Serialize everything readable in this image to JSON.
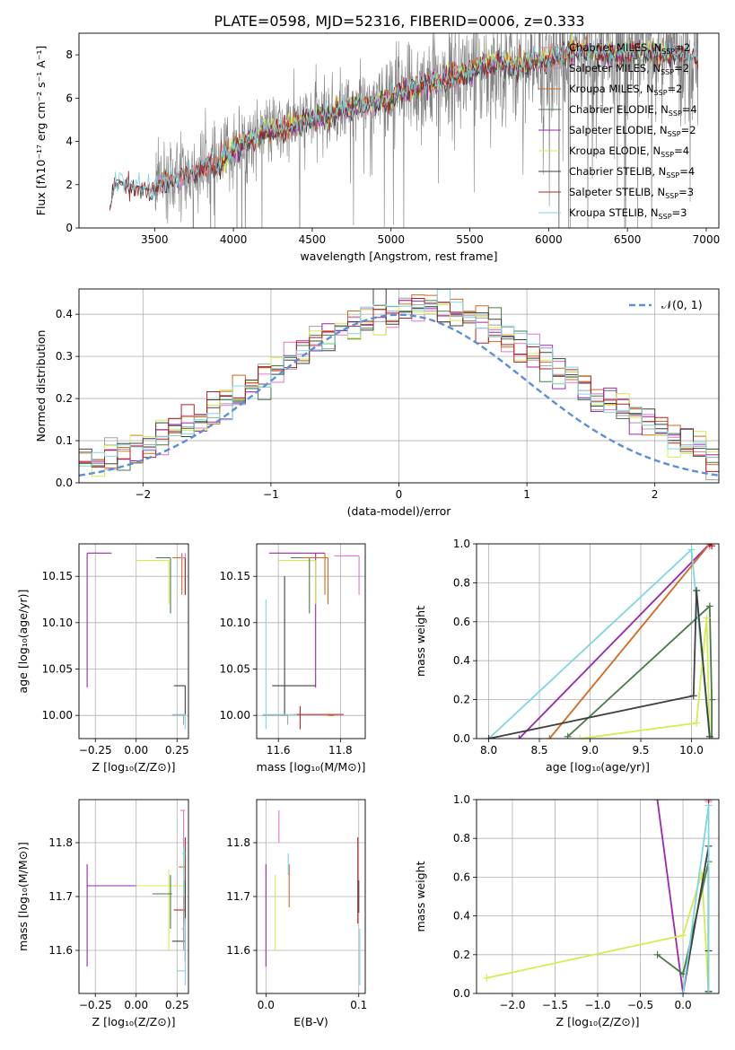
{
  "figure": {
    "title": "PLATE=0598, MJD=52316, FIBERID=0006, z=0.333"
  },
  "colors": {
    "chabrier_miles": "#a0a0a0",
    "salpeter_miles": "#e377c2",
    "kroupa_miles": "#d2691e",
    "chabrier_elodie": "#4a7a4a",
    "salpeter_elodie": "#9b27b0",
    "kroupa_elodie": "#d4ec50",
    "chabrier_stelib": "#404040",
    "salpeter_stelib": "#b22222",
    "kroupa_stelib": "#7fd6e0",
    "spectrum": "#808080",
    "gaussian": "#5b8fd6"
  },
  "legend": [
    {
      "key": "chabrier_miles",
      "label": "Chabrier MILES, N",
      "sub": "SSP",
      "tail": "=2"
    },
    {
      "key": "salpeter_miles",
      "label": "Salpeter MILES, N",
      "sub": "SSP",
      "tail": "=2"
    },
    {
      "key": "kroupa_miles",
      "label": "Kroupa MILES, N",
      "sub": "SSP",
      "tail": "=2"
    },
    {
      "key": "chabrier_elodie",
      "label": "Chabrier ELODIE, N",
      "sub": "SSP",
      "tail": "=4"
    },
    {
      "key": "salpeter_elodie",
      "label": "Salpeter ELODIE, N",
      "sub": "SSP",
      "tail": "=2"
    },
    {
      "key": "kroupa_elodie",
      "label": "Kroupa ELODIE, N",
      "sub": "SSP",
      "tail": "=4"
    },
    {
      "key": "chabrier_stelib",
      "label": "Chabrier STELIB, N",
      "sub": "SSP",
      "tail": "=4"
    },
    {
      "key": "salpeter_stelib",
      "label": "Salpeter STELIB, N",
      "sub": "SSP",
      "tail": "=3"
    },
    {
      "key": "kroupa_stelib",
      "label": "Kroupa STELIB, N",
      "sub": "SSP",
      "tail": "=3"
    }
  ],
  "chart_data": [
    {
      "id": "spectrum",
      "type": "line",
      "xlabel": "wavelength [Angstrom, rest frame]",
      "ylabel": "Flux [fλ10⁻¹⁷ erg cm⁻² s⁻¹ A⁻¹]",
      "xlim": [
        3020,
        7080
      ],
      "ylim": [
        0,
        9
      ],
      "xticks": [
        3500,
        4000,
        4500,
        5000,
        5500,
        6000,
        6500,
        7000
      ],
      "yticks": [
        0,
        2,
        4,
        6,
        8
      ],
      "envelope": {
        "x": [
          3215,
          3240,
          3280,
          3350,
          3420,
          3480,
          3520,
          3580,
          3650,
          3750,
          3850,
          3900,
          4000,
          4100,
          4200,
          4300,
          4400,
          4500,
          4600,
          4700,
          4800,
          4900,
          5000,
          5100,
          5200,
          5300,
          5400,
          5500,
          5600,
          5700,
          5800,
          5900,
          6000,
          6200,
          6400,
          6600,
          6800,
          6950
        ],
        "y": [
          0.9,
          1.8,
          2.15,
          1.95,
          1.85,
          1.75,
          1.95,
          2.1,
          2.3,
          2.5,
          3.0,
          2.8,
          3.7,
          4.1,
          4.5,
          4.5,
          4.8,
          5.1,
          5.2,
          5.5,
          5.7,
          5.7,
          6.0,
          6.4,
          6.6,
          6.8,
          7.0,
          7.2,
          7.5,
          7.6,
          7.4,
          7.7,
          7.8,
          8.2,
          8.0,
          8.2,
          8.0,
          7.9
        ]
      }
    },
    {
      "id": "residuals",
      "type": "histogram",
      "xlabel": "(data-model)/error",
      "ylabel": "Normed distribution",
      "xlim": [
        -2.5,
        2.5
      ],
      "ylim": [
        0,
        0.46
      ],
      "xticks": [
        -2,
        -1,
        0,
        1,
        2
      ],
      "yticks": [
        0.0,
        0.1,
        0.2,
        0.3,
        0.4
      ],
      "grid": true,
      "legend_position": "top-right",
      "gaussian_label": "𝒩(0, 1)",
      "bin_width": 0.1
    },
    {
      "id": "age_vs_Z",
      "type": "scatter",
      "xlabel": "Z [log₁₀(Z/Z⊙)]",
      "ylabel": "age  [log₁₀(age/yr)]",
      "xlim": [
        -0.35,
        0.32
      ],
      "ylim": [
        9.975,
        10.185
      ],
      "xticks": [
        -0.25,
        0.0,
        0.25
      ],
      "yticks": [
        10.0,
        10.05,
        10.1,
        10.15
      ],
      "grid": true,
      "points": [
        {
          "series": "salpeter_elodie",
          "x": -0.3,
          "y": 10.175,
          "xlo": -0.3,
          "xhi": -0.15,
          "ylo": 10.03,
          "yhi": 10.175
        },
        {
          "series": "kroupa_elodie",
          "x": 0.2,
          "y": 10.167,
          "xlo": 0.0,
          "xhi": 0.2,
          "ylo": 10.12,
          "yhi": 10.167
        },
        {
          "series": "chabrier_elodie",
          "x": 0.21,
          "y": 10.17,
          "xlo": 0.12,
          "xhi": 0.21,
          "ylo": 10.11,
          "yhi": 10.17
        },
        {
          "series": "kroupa_miles",
          "x": 0.28,
          "y": 10.17,
          "xlo": 0.22,
          "xhi": 0.3,
          "ylo": 10.13,
          "yhi": 10.175
        },
        {
          "series": "salpeter_miles",
          "x": 0.3,
          "y": 10.17,
          "xlo": 0.27,
          "xhi": 0.3,
          "ylo": 10.13,
          "yhi": 10.175
        },
        {
          "series": "salpeter_stelib",
          "x": 0.3,
          "y": 10.16,
          "xlo": 0.3,
          "xhi": 0.3,
          "ylo": 10.13,
          "yhi": 10.17
        },
        {
          "series": "chabrier_stelib",
          "x": 0.3,
          "y": 10.032,
          "xlo": 0.23,
          "xhi": 0.3,
          "ylo": 10.0,
          "yhi": 10.032
        },
        {
          "series": "kroupa_stelib",
          "x": 0.3,
          "y": 10.001,
          "xlo": 0.22,
          "xhi": 0.3,
          "ylo": 9.985,
          "yhi": 10.001
        },
        {
          "series": "chabrier_miles",
          "x": 0.29,
          "y": 10.0,
          "xlo": 0.22,
          "xhi": 0.29,
          "ylo": 9.99,
          "yhi": 10.0
        }
      ]
    },
    {
      "id": "age_vs_mass",
      "type": "scatter",
      "xlabel": "mass [log₁₀(M/M⊙)]",
      "ylabel": "",
      "xlim": [
        11.53,
        11.88
      ],
      "ylim": [
        9.975,
        10.185
      ],
      "xticks": [
        11.6,
        11.8
      ],
      "yticks": [
        10.0,
        10.05,
        10.1,
        10.15
      ],
      "grid": true,
      "points": [
        {
          "series": "salpeter_elodie",
          "x": 11.72,
          "y": 10.175,
          "xlo": 11.57,
          "xhi": 11.75,
          "ylo": 10.03,
          "yhi": 10.175
        },
        {
          "series": "kroupa_elodie",
          "x": 11.72,
          "y": 10.167,
          "xlo": 11.6,
          "xhi": 11.72,
          "ylo": 10.12,
          "yhi": 10.167
        },
        {
          "series": "chabrier_elodie",
          "x": 11.7,
          "y": 10.17,
          "xlo": 11.64,
          "xhi": 11.71,
          "ylo": 10.11,
          "yhi": 10.17
        },
        {
          "series": "kroupa_miles",
          "x": 11.75,
          "y": 10.17,
          "xlo": 11.68,
          "xhi": 11.76,
          "ylo": 10.13,
          "yhi": 10.175
        },
        {
          "series": "salpeter_miles",
          "x": 11.86,
          "y": 10.172,
          "xlo": 11.78,
          "xhi": 11.86,
          "ylo": 10.13,
          "yhi": 10.172
        },
        {
          "series": "salpeter_stelib",
          "x": 11.67,
          "y": 10.001,
          "xlo": 11.65,
          "xhi": 11.81,
          "ylo": 9.985,
          "yhi": 10.01
        },
        {
          "series": "chabrier_stelib",
          "x": 11.62,
          "y": 10.032,
          "xlo": 11.58,
          "xhi": 11.72,
          "ylo": 10.0,
          "yhi": 10.15
        },
        {
          "series": "kroupa_stelib",
          "x": 11.56,
          "y": 10.001,
          "xlo": 11.55,
          "xhi": 11.66,
          "ylo": 9.985,
          "yhi": 10.125
        },
        {
          "series": "chabrier_miles",
          "x": 11.63,
          "y": 10.0,
          "xlo": 11.55,
          "xhi": 11.63,
          "ylo": 9.99,
          "yhi": 10.0
        },
        {
          "series": "kroupa_miles",
          "x": 11.76,
          "y": 10.0,
          "xlo": 11.76,
          "xhi": 11.78,
          "ylo": 10.12,
          "yhi": 10.17
        }
      ]
    },
    {
      "id": "mass_weight_vs_age",
      "type": "line",
      "xlabel": "age  [log₁₀(age/yr)]",
      "ylabel": "mass weight",
      "xlim": [
        7.88,
        10.27
      ],
      "ylim": [
        0,
        1
      ],
      "xticks": [
        8.0,
        8.5,
        9.0,
        9.5,
        10.0
      ],
      "yticks": [
        0.0,
        0.2,
        0.4,
        0.6,
        0.8,
        1.0
      ],
      "grid": true,
      "series": [
        {
          "key": "salpeter_elodie",
          "x": [
            8.3,
            10.18
          ],
          "y": [
            0.0,
            1.0
          ]
        },
        {
          "key": "kroupa_miles",
          "x": [
            8.6,
            10.18
          ],
          "y": [
            0.0,
            1.0
          ]
        },
        {
          "key": "chabrier_elodie",
          "x": [
            8.78,
            10.18,
            10.2,
            10.2
          ],
          "y": [
            0.01,
            0.68,
            0.2,
            0.0
          ]
        },
        {
          "key": "kroupa_stelib",
          "x": [
            8.0,
            10.0,
            10.18
          ],
          "y": [
            0.0,
            0.97,
            0.0
          ]
        },
        {
          "key": "kroupa_elodie",
          "x": [
            8.9,
            10.05,
            10.15,
            10.18
          ],
          "y": [
            0.0,
            0.08,
            0.62,
            0.0
          ]
        },
        {
          "key": "chabrier_stelib",
          "x": [
            8.0,
            10.02,
            10.05,
            10.18
          ],
          "y": [
            0.0,
            0.22,
            0.76,
            0.01
          ]
        },
        {
          "key": "salpeter_miles",
          "x": [
            10.18
          ],
          "y": [
            0.99
          ]
        },
        {
          "key": "salpeter_stelib",
          "x": [
            10.18,
            10.2
          ],
          "y": [
            1.0,
            0.99
          ]
        }
      ]
    },
    {
      "id": "mass_vs_Z",
      "type": "scatter",
      "xlabel": "Z [log₁₀(Z/Z⊙)]",
      "ylabel": "mass [log₁₀(M/M⊙)]",
      "xlim": [
        -0.35,
        0.32
      ],
      "ylim": [
        11.52,
        11.88
      ],
      "xticks": [
        -0.25,
        0.0,
        0.25
      ],
      "yticks": [
        11.6,
        11.7,
        11.8
      ],
      "grid": true,
      "points": [
        {
          "series": "salpeter_elodie",
          "x": -0.3,
          "y": 11.72,
          "xlo": -0.3,
          "xhi": 0.0,
          "ylo": 11.57,
          "yhi": 11.76
        },
        {
          "series": "kroupa_elodie",
          "x": 0.2,
          "y": 11.72,
          "xlo": 0.0,
          "xhi": 0.3,
          "ylo": 11.6,
          "yhi": 11.75
        },
        {
          "series": "chabrier_elodie",
          "x": 0.21,
          "y": 11.705,
          "xlo": 0.1,
          "xhi": 0.22,
          "ylo": 11.64,
          "yhi": 11.74
        },
        {
          "series": "kroupa_miles",
          "x": 0.29,
          "y": 11.755,
          "xlo": 0.26,
          "xhi": 0.3,
          "ylo": 11.68,
          "yhi": 11.77
        },
        {
          "series": "salpeter_miles",
          "x": 0.29,
          "y": 11.86,
          "xlo": 0.27,
          "xhi": 0.3,
          "ylo": 11.78,
          "yhi": 11.86
        },
        {
          "series": "salpeter_stelib",
          "x": 0.3,
          "y": 11.675,
          "xlo": 0.23,
          "xhi": 0.3,
          "ylo": 11.65,
          "yhi": 11.81
        },
        {
          "series": "chabrier_stelib",
          "x": 0.3,
          "y": 11.617,
          "xlo": 0.22,
          "xhi": 0.3,
          "ylo": 11.58,
          "yhi": 11.73
        },
        {
          "series": "kroupa_stelib",
          "x": 0.3,
          "y": 11.562,
          "xlo": 0.25,
          "xhi": 0.3,
          "ylo": 11.535,
          "yhi": 11.66
        },
        {
          "series": "chabrier_miles",
          "x": 0.29,
          "y": 11.64,
          "xlo": 0.28,
          "xhi": 0.29,
          "ylo": 11.6,
          "yhi": 11.7
        },
        {
          "series": "kroupa_stelib",
          "x": 0.29,
          "y": 11.78,
          "xlo": 0.28,
          "xhi": 0.3,
          "ylo": 11.7,
          "yhi": 11.79
        }
      ]
    },
    {
      "id": "mass_vs_ebv",
      "type": "scatter",
      "xlabel": "E(B-V)",
      "ylabel": "",
      "xlim": [
        -0.01,
        0.107
      ],
      "ylim": [
        11.52,
        11.88
      ],
      "xticks": [
        0.0,
        0.1
      ],
      "yticks": [
        11.6,
        11.7,
        11.8
      ],
      "grid": true,
      "points": [
        {
          "series": "salpeter_elodie",
          "x": 0.0,
          "y": 11.67,
          "xlo": 0.0,
          "xhi": 0.0,
          "ylo": 11.57,
          "yhi": 11.76
        },
        {
          "series": "kroupa_elodie",
          "x": 0.01,
          "y": 11.67,
          "xlo": 0.01,
          "xhi": 0.01,
          "ylo": 11.6,
          "yhi": 11.74
        },
        {
          "series": "salpeter_miles",
          "x": 0.014,
          "y": 11.82,
          "xlo": 0.014,
          "xhi": 0.014,
          "ylo": 11.8,
          "yhi": 11.86
        },
        {
          "series": "kroupa_miles",
          "x": 0.025,
          "y": 11.72,
          "xlo": 0.025,
          "xhi": 0.025,
          "ylo": 11.68,
          "yhi": 11.76
        },
        {
          "series": "kroupa_stelib",
          "x": 0.024,
          "y": 11.77,
          "xlo": 0.024,
          "xhi": 0.024,
          "ylo": 11.74,
          "yhi": 11.78
        },
        {
          "series": "salpeter_stelib",
          "x": 0.099,
          "y": 11.72,
          "xlo": 0.099,
          "xhi": 0.099,
          "ylo": 11.65,
          "yhi": 11.81
        },
        {
          "series": "chabrier_stelib",
          "x": 0.1,
          "y": 11.7,
          "xlo": 0.1,
          "xhi": 0.1,
          "ylo": 11.67,
          "yhi": 11.73
        },
        {
          "series": "kroupa_stelib",
          "x": 0.101,
          "y": 11.58,
          "xlo": 0.101,
          "xhi": 0.101,
          "ylo": 11.535,
          "yhi": 11.64
        }
      ]
    },
    {
      "id": "mass_weight_vs_Z",
      "type": "line",
      "xlabel": "Z [log₁₀(Z/Z⊙)]",
      "ylabel": "mass weight",
      "xlim": [
        -2.42,
        0.42
      ],
      "ylim": [
        0,
        1
      ],
      "xticks": [
        -2.0,
        -1.5,
        -1.0,
        -0.5,
        0.0
      ],
      "yticks": [
        0.0,
        0.2,
        0.4,
        0.6,
        0.8,
        1.0
      ],
      "grid": true,
      "series": [
        {
          "key": "salpeter_elodie",
          "x": [
            -0.3,
            0.0
          ],
          "y": [
            1.0,
            0.0
          ]
        },
        {
          "key": "kroupa_elodie",
          "x": [
            -2.3,
            0.0,
            0.22,
            0.3
          ],
          "y": [
            0.08,
            0.3,
            0.62,
            0.0
          ]
        },
        {
          "key": "chabrier_elodie",
          "x": [
            -0.3,
            0.0,
            0.3,
            0.3
          ],
          "y": [
            0.2,
            0.1,
            0.68,
            0.01
          ]
        },
        {
          "key": "chabrier_stelib",
          "x": [
            0.0,
            0.3,
            0.3,
            0.3
          ],
          "y": [
            0.0,
            0.76,
            0.22,
            0.01
          ]
        },
        {
          "key": "kroupa_stelib",
          "x": [
            0.0,
            0.3,
            0.3
          ],
          "y": [
            0.0,
            0.97,
            0.0
          ]
        },
        {
          "key": "kroupa_miles",
          "x": [
            0.3
          ],
          "y": [
            1.0
          ]
        },
        {
          "key": "salpeter_miles",
          "x": [
            0.3
          ],
          "y": [
            0.99
          ]
        },
        {
          "key": "salpeter_stelib",
          "x": [
            0.3
          ],
          "y": [
            1.0
          ]
        }
      ]
    }
  ]
}
